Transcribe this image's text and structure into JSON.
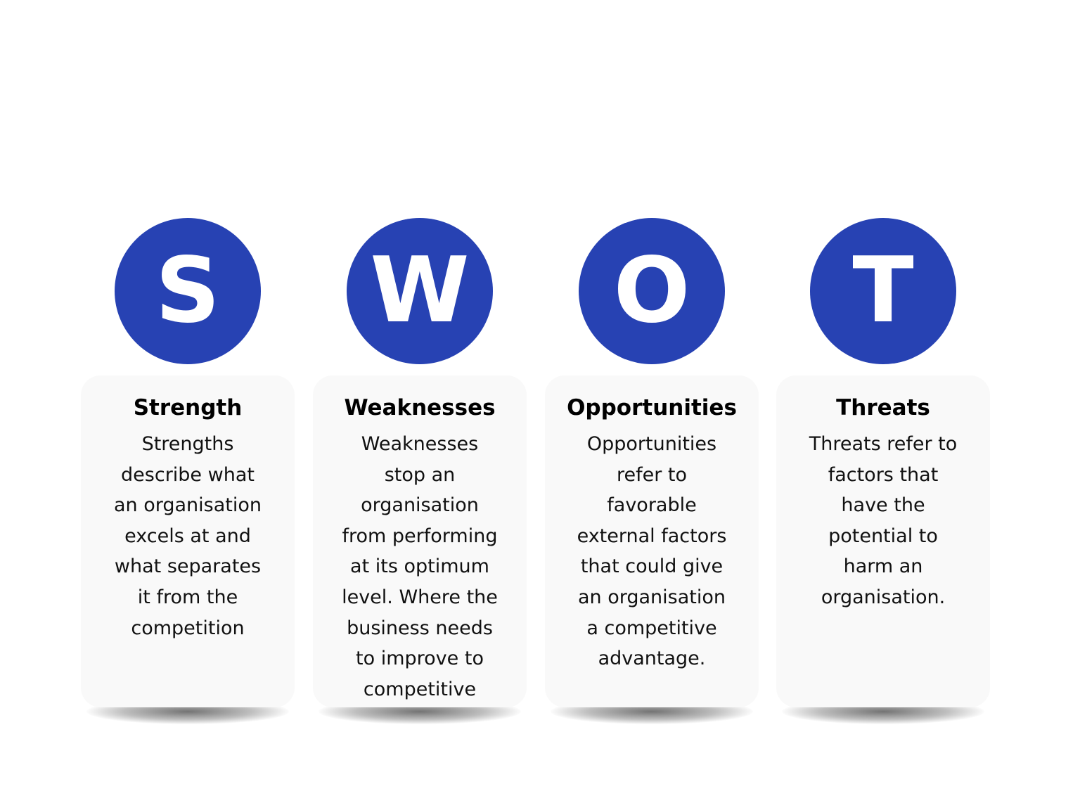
{
  "swot": {
    "items": [
      {
        "letter": "S",
        "title": "Strength",
        "body": "Strengths\ndescribe what\nan organisation\nexcels at and\nwhat separates\nit from the\ncompetition"
      },
      {
        "letter": "W",
        "title": "Weaknesses",
        "body": "Weaknesses\nstop an\norganisation\nfrom performing\nat its optimum\nlevel. Where the\nbusiness needs\nto improve to\ncompetitive"
      },
      {
        "letter": "O",
        "title": "Opportunities",
        "body": "Opportunities\nrefer to\nfavorable\nexternal factors\nthat could give\nan organisation\na competitive\nadvantage."
      },
      {
        "letter": "T",
        "title": "Threats",
        "body": "Threats refer to\nfactors that\nhave the\npotential to\nharm an\norganisation."
      }
    ]
  },
  "colors": {
    "circle": "#2742b3",
    "card": "#f9f9f9",
    "letter": "#ffffff",
    "text": "#000000"
  }
}
